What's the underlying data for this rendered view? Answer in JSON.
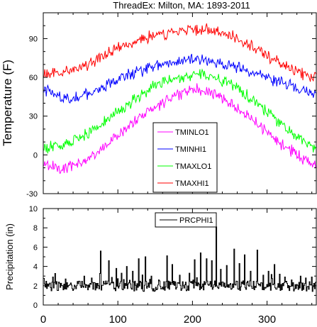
{
  "title": "ThreadEx: Milton, MA: 1893-2011",
  "chart_data": [
    {
      "type": "line",
      "ylabel": "Temperature (F)",
      "xlim": [
        0,
        366
      ],
      "ylim": [
        -30,
        110
      ],
      "yticks": [
        -30,
        0,
        30,
        60,
        90
      ],
      "xticks": [
        0,
        100,
        200,
        300
      ],
      "legend_position": "center",
      "series": [
        {
          "name": "TMINLO1",
          "color": "#ff00ff",
          "knots": [
            [
              1,
              -7
            ],
            [
              15,
              -9
            ],
            [
              30,
              -10
            ],
            [
              45,
              -8
            ],
            [
              60,
              -3
            ],
            [
              75,
              3
            ],
            [
              90,
              10
            ],
            [
              105,
              18
            ],
            [
              120,
              25
            ],
            [
              135,
              32
            ],
            [
              150,
              37
            ],
            [
              165,
              42
            ],
            [
              180,
              47
            ],
            [
              195,
              50
            ],
            [
              205,
              51
            ],
            [
              215,
              50
            ],
            [
              230,
              47
            ],
            [
              245,
              42
            ],
            [
              260,
              37
            ],
            [
              275,
              30
            ],
            [
              290,
              22
            ],
            [
              305,
              15
            ],
            [
              320,
              8
            ],
            [
              335,
              2
            ],
            [
              350,
              -4
            ],
            [
              366,
              -8
            ]
          ]
        },
        {
          "name": "TMINHI1",
          "color": "#0000ff",
          "knots": [
            [
              1,
              50
            ],
            [
              15,
              47
            ],
            [
              30,
              44
            ],
            [
              45,
              45
            ],
            [
              60,
              47
            ],
            [
              75,
              51
            ],
            [
              90,
              55
            ],
            [
              105,
              59
            ],
            [
              120,
              63
            ],
            [
              135,
              66
            ],
            [
              150,
              69
            ],
            [
              165,
              71
            ],
            [
              180,
              72
            ],
            [
              195,
              73
            ],
            [
              205,
              74
            ],
            [
              215,
              73
            ],
            [
              230,
              72
            ],
            [
              245,
              70
            ],
            [
              260,
              68
            ],
            [
              275,
              65
            ],
            [
              290,
              62
            ],
            [
              305,
              59
            ],
            [
              320,
              56
            ],
            [
              335,
              53
            ],
            [
              350,
              50
            ],
            [
              366,
              48
            ]
          ]
        },
        {
          "name": "TMAXLO1",
          "color": "#00ff00",
          "knots": [
            [
              1,
              5
            ],
            [
              15,
              6
            ],
            [
              30,
              8
            ],
            [
              45,
              11
            ],
            [
              60,
              16
            ],
            [
              75,
              22
            ],
            [
              90,
              29
            ],
            [
              105,
              36
            ],
            [
              120,
              42
            ],
            [
              135,
              48
            ],
            [
              150,
              53
            ],
            [
              165,
              57
            ],
            [
              180,
              60
            ],
            [
              195,
              62
            ],
            [
              205,
              63
            ],
            [
              215,
              62
            ],
            [
              230,
              60
            ],
            [
              245,
              56
            ],
            [
              260,
              51
            ],
            [
              275,
              45
            ],
            [
              290,
              38
            ],
            [
              305,
              31
            ],
            [
              320,
              24
            ],
            [
              335,
              16
            ],
            [
              350,
              10
            ],
            [
              366,
              4
            ]
          ]
        },
        {
          "name": "TMAXHI1",
          "color": "#ff0000",
          "knots": [
            [
              1,
              62
            ],
            [
              15,
              63
            ],
            [
              30,
              65
            ],
            [
              45,
              67
            ],
            [
              60,
              70
            ],
            [
              75,
              75
            ],
            [
              90,
              80
            ],
            [
              105,
              84
            ],
            [
              120,
              87
            ],
            [
              135,
              90
            ],
            [
              150,
              92
            ],
            [
              165,
              94
            ],
            [
              180,
              95
            ],
            [
              195,
              96
            ],
            [
              205,
              97
            ],
            [
              220,
              97
            ],
            [
              235,
              96
            ],
            [
              250,
              93
            ],
            [
              265,
              89
            ],
            [
              280,
              84
            ],
            [
              295,
              79
            ],
            [
              310,
              73
            ],
            [
              325,
              68
            ],
            [
              340,
              64
            ],
            [
              355,
              61
            ],
            [
              366,
              60
            ]
          ]
        }
      ]
    },
    {
      "type": "line",
      "xlabel": "",
      "ylabel": "Precipitation (in)",
      "xlim": [
        0,
        366
      ],
      "ylim": [
        0,
        10
      ],
      "yticks": [
        0,
        2,
        4,
        6,
        8,
        10
      ],
      "xticks": [
        0,
        100,
        200,
        300
      ],
      "legend_position": "top-center",
      "series": [
        {
          "name": "PRCPHI1",
          "color": "#000000",
          "baseline": 1.9,
          "spikes": [
            [
              13,
              2.9
            ],
            [
              30,
              2.7
            ],
            [
              55,
              3.0
            ],
            [
              65,
              2.8
            ],
            [
              77,
              5.6
            ],
            [
              88,
              4.6
            ],
            [
              98,
              3.8
            ],
            [
              105,
              3.3
            ],
            [
              112,
              4.0
            ],
            [
              120,
              3.5
            ],
            [
              128,
              4.8
            ],
            [
              137,
              5.0
            ],
            [
              145,
              3.0
            ],
            [
              155,
              2.6
            ],
            [
              166,
              5.1
            ],
            [
              173,
              4.2
            ],
            [
              183,
              3.1
            ],
            [
              196,
              3.3
            ],
            [
              203,
              4.7
            ],
            [
              211,
              5.4
            ],
            [
              219,
              4.8
            ],
            [
              226,
              4.6
            ],
            [
              232,
              8.1
            ],
            [
              238,
              3.7
            ],
            [
              246,
              4.1
            ],
            [
              256,
              5.8
            ],
            [
              263,
              4.3
            ],
            [
              270,
              5.2
            ],
            [
              278,
              3.5
            ],
            [
              287,
              5.7
            ],
            [
              295,
              3.1
            ],
            [
              302,
              3.5
            ],
            [
              310,
              4.2
            ],
            [
              317,
              3.2
            ],
            [
              324,
              2.9
            ],
            [
              333,
              2.6
            ],
            [
              345,
              3.0
            ],
            [
              352,
              2.8
            ],
            [
              360,
              2.9
            ]
          ]
        }
      ]
    }
  ]
}
